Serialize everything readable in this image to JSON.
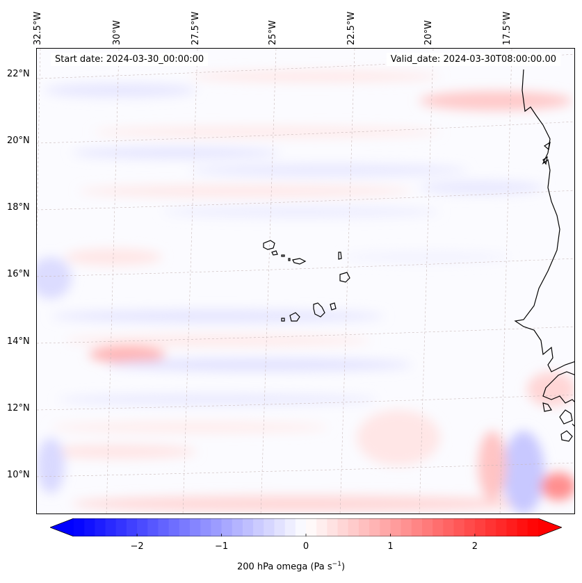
{
  "header": {
    "start_date": "Start date: 2024-03-30_00:00:00",
    "valid_date": "Valid_date: 2024-03-30T08:00:00.00"
  },
  "axes": {
    "longitude_labels": [
      "32.5°W",
      "30°W",
      "27.5°W",
      "25°W",
      "22.5°W",
      "20°W",
      "17.5°W"
    ],
    "latitude_labels": [
      "22°N",
      "20°N",
      "18°N",
      "16°N",
      "14°N",
      "12°N",
      "10°N"
    ]
  },
  "colorbar": {
    "label": "200 hPa omega (Pa s",
    "label_sup": "−1",
    "label_end": ")",
    "ticks": [
      "−2",
      "−1",
      "0",
      "1",
      "2"
    ],
    "range": [
      -2.75,
      2.75
    ],
    "extend": "both",
    "cmap": "bwr",
    "negative_color": "#0000ff",
    "positive_color": "#ff0000"
  }
}
